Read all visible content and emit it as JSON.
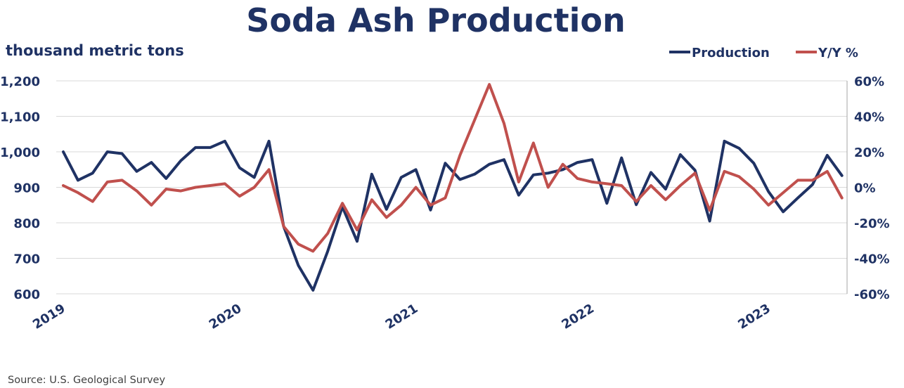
{
  "colors": {
    "navy": "#1f3264",
    "red": "#c0504d",
    "grid": "#d9d9d9",
    "axis": "#a6a6a6",
    "source": "#404040"
  },
  "source": "Source:   U.S. Geological Survey",
  "chart_data": {
    "type": "line",
    "title": "Soda Ash Production",
    "ylabel": "thousand metric tons",
    "x_tick_labels": [
      "2019",
      "2020",
      "2021",
      "2022",
      "2023"
    ],
    "y_ticks_left": [
      "1,200",
      "1,100",
      "1,000",
      "900",
      "800",
      "700",
      "600"
    ],
    "y_ticks_right": [
      "60%",
      "40%",
      "20%",
      "0%",
      "-20%",
      "-40%",
      "-60%"
    ],
    "ylim_left": [
      600,
      1200
    ],
    "ylim_right": [
      -60,
      60
    ],
    "x_start": "2019-01",
    "legend_position": "top-right",
    "grid": true,
    "series": [
      {
        "name": "Production",
        "axis": "left",
        "color": "#1f3264",
        "values": [
          1000,
          920,
          940,
          1000,
          995,
          945,
          970,
          925,
          975,
          1012,
          1012,
          1030,
          955,
          928,
          1030,
          790,
          680,
          610,
          720,
          845,
          748,
          937,
          838,
          928,
          950,
          836,
          968,
          922,
          937,
          965,
          978,
          878,
          935,
          940,
          950,
          970,
          978,
          855,
          983,
          851,
          942,
          895,
          992,
          948,
          805,
          1030,
          1010,
          968,
          888,
          831,
          870,
          908,
          990,
          933
        ]
      },
      {
        "name": "Y/Y %",
        "axis": "right",
        "color": "#c0504d",
        "values": [
          1,
          -3,
          -8,
          3,
          4,
          -2,
          -10,
          -1,
          -2,
          0,
          1,
          2,
          -5,
          0,
          10,
          -22,
          -32,
          -36,
          -26,
          -9,
          -24,
          -7,
          -17,
          -10,
          0,
          -10,
          -6,
          18,
          38,
          58,
          36,
          3,
          25,
          0,
          13,
          5,
          3,
          2,
          1,
          -8,
          1,
          -7,
          1,
          8,
          -13,
          9,
          6,
          -1,
          -10,
          -3,
          4,
          4,
          9,
          -6
        ]
      }
    ]
  }
}
